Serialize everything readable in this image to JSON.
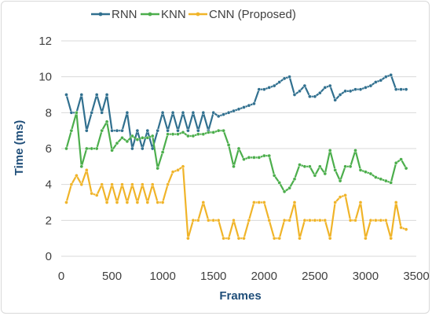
{
  "chart_data": {
    "type": "line",
    "title": "",
    "xlabel": "Frames",
    "ylabel": "Time (ms)",
    "xlim": [
      0,
      3500
    ],
    "ylim": [
      0,
      12
    ],
    "xticks": [
      "0",
      "500",
      "1000",
      "1500",
      "2000",
      "2500",
      "3000",
      "3500"
    ],
    "yticks": [
      "0",
      "2",
      "4",
      "6",
      "8",
      "10",
      "12"
    ],
    "grid": "horizontal",
    "legend_position": "top",
    "series": [
      {
        "name": "RNN",
        "color": "#31708f",
        "points": [
          [
            50,
            9
          ],
          [
            100,
            8
          ],
          [
            150,
            8
          ],
          [
            200,
            9
          ],
          [
            250,
            7
          ],
          [
            300,
            8
          ],
          [
            350,
            9
          ],
          [
            400,
            8
          ],
          [
            450,
            9
          ],
          [
            500,
            7
          ],
          [
            550,
            7
          ],
          [
            600,
            7
          ],
          [
            650,
            8
          ],
          [
            700,
            6
          ],
          [
            750,
            7
          ],
          [
            800,
            6
          ],
          [
            850,
            7
          ],
          [
            900,
            6
          ],
          [
            950,
            7
          ],
          [
            1000,
            8
          ],
          [
            1050,
            7
          ],
          [
            1100,
            8
          ],
          [
            1150,
            7
          ],
          [
            1200,
            8
          ],
          [
            1250,
            7
          ],
          [
            1300,
            8
          ],
          [
            1350,
            7
          ],
          [
            1400,
            8
          ],
          [
            1450,
            7
          ],
          [
            1500,
            8
          ],
          [
            1550,
            7.8
          ],
          [
            1600,
            7.9
          ],
          [
            1650,
            8
          ],
          [
            1700,
            8.1
          ],
          [
            1750,
            8.2
          ],
          [
            1800,
            8.3
          ],
          [
            1850,
            8.4
          ],
          [
            1900,
            8.5
          ],
          [
            1950,
            9.3
          ],
          [
            2000,
            9.3
          ],
          [
            2050,
            9.4
          ],
          [
            2100,
            9.5
          ],
          [
            2150,
            9.7
          ],
          [
            2200,
            9.9
          ],
          [
            2250,
            10
          ],
          [
            2300,
            9
          ],
          [
            2350,
            9.2
          ],
          [
            2400,
            9.5
          ],
          [
            2450,
            8.9
          ],
          [
            2500,
            8.9
          ],
          [
            2550,
            9.1
          ],
          [
            2600,
            9.4
          ],
          [
            2650,
            9.5
          ],
          [
            2700,
            8.7
          ],
          [
            2750,
            9
          ],
          [
            2800,
            9.2
          ],
          [
            2850,
            9.2
          ],
          [
            2900,
            9.3
          ],
          [
            2950,
            9.3
          ],
          [
            3000,
            9.4
          ],
          [
            3050,
            9.5
          ],
          [
            3100,
            9.7
          ],
          [
            3150,
            9.8
          ],
          [
            3200,
            10
          ],
          [
            3250,
            10.1
          ],
          [
            3300,
            9.3
          ],
          [
            3350,
            9.3
          ],
          [
            3400,
            9.3
          ]
        ]
      },
      {
        "name": "KNN",
        "color": "#4cae4c",
        "points": [
          [
            50,
            6
          ],
          [
            100,
            7
          ],
          [
            150,
            8
          ],
          [
            200,
            5
          ],
          [
            250,
            6
          ],
          [
            300,
            6
          ],
          [
            350,
            6
          ],
          [
            400,
            7
          ],
          [
            450,
            7.5
          ],
          [
            500,
            5.9
          ],
          [
            550,
            6.3
          ],
          [
            600,
            6.6
          ],
          [
            650,
            6.4
          ],
          [
            700,
            6.7
          ],
          [
            750,
            6.5
          ],
          [
            800,
            6.6
          ],
          [
            850,
            6.6
          ],
          [
            900,
            6.7
          ],
          [
            950,
            4.9
          ],
          [
            1000,
            5.8
          ],
          [
            1050,
            6.8
          ],
          [
            1100,
            6.8
          ],
          [
            1150,
            6.8
          ],
          [
            1200,
            6.9
          ],
          [
            1250,
            6.7
          ],
          [
            1300,
            6.7
          ],
          [
            1350,
            6.8
          ],
          [
            1400,
            6.8
          ],
          [
            1450,
            6.9
          ],
          [
            1500,
            6.9
          ],
          [
            1550,
            7
          ],
          [
            1600,
            7
          ],
          [
            1650,
            6.2
          ],
          [
            1700,
            5
          ],
          [
            1750,
            6
          ],
          [
            1800,
            5.4
          ],
          [
            1850,
            5.5
          ],
          [
            1900,
            5.5
          ],
          [
            1950,
            5.5
          ],
          [
            2000,
            5.6
          ],
          [
            2050,
            5.6
          ],
          [
            2100,
            4.5
          ],
          [
            2150,
            4.1
          ],
          [
            2200,
            3.6
          ],
          [
            2250,
            3.8
          ],
          [
            2300,
            4.3
          ],
          [
            2350,
            5.1
          ],
          [
            2400,
            5
          ],
          [
            2450,
            5
          ],
          [
            2500,
            4.5
          ],
          [
            2550,
            5
          ],
          [
            2600,
            4.6
          ],
          [
            2650,
            5.9
          ],
          [
            2700,
            4.8
          ],
          [
            2750,
            4.2
          ],
          [
            2800,
            5
          ],
          [
            2850,
            5
          ],
          [
            2900,
            5.9
          ],
          [
            2950,
            4.8
          ],
          [
            3000,
            4.7
          ],
          [
            3050,
            4.6
          ],
          [
            3100,
            4.4
          ],
          [
            3150,
            4.3
          ],
          [
            3200,
            4.2
          ],
          [
            3250,
            4.1
          ],
          [
            3300,
            5.2
          ],
          [
            3350,
            5.4
          ],
          [
            3400,
            4.9
          ]
        ]
      },
      {
        "name": "CNN (Proposed)",
        "color": "#f0b429",
        "points": [
          [
            50,
            3
          ],
          [
            100,
            4
          ],
          [
            150,
            4.5
          ],
          [
            200,
            4
          ],
          [
            250,
            4.8
          ],
          [
            300,
            3.5
          ],
          [
            350,
            3.4
          ],
          [
            400,
            4
          ],
          [
            450,
            3
          ],
          [
            500,
            4
          ],
          [
            550,
            3
          ],
          [
            600,
            4
          ],
          [
            650,
            3
          ],
          [
            700,
            4
          ],
          [
            750,
            3
          ],
          [
            800,
            4
          ],
          [
            850,
            3
          ],
          [
            900,
            4
          ],
          [
            950,
            3
          ],
          [
            1000,
            3
          ],
          [
            1050,
            4
          ],
          [
            1100,
            4.7
          ],
          [
            1150,
            4.8
          ],
          [
            1200,
            5
          ],
          [
            1250,
            1
          ],
          [
            1300,
            2
          ],
          [
            1350,
            2
          ],
          [
            1400,
            3
          ],
          [
            1450,
            2
          ],
          [
            1500,
            2
          ],
          [
            1550,
            2
          ],
          [
            1600,
            1
          ],
          [
            1650,
            1
          ],
          [
            1700,
            2
          ],
          [
            1750,
            1
          ],
          [
            1800,
            1
          ],
          [
            1850,
            2
          ],
          [
            1900,
            3
          ],
          [
            1950,
            3
          ],
          [
            2000,
            3
          ],
          [
            2050,
            2
          ],
          [
            2100,
            1
          ],
          [
            2150,
            1
          ],
          [
            2200,
            2
          ],
          [
            2250,
            2
          ],
          [
            2300,
            3
          ],
          [
            2350,
            1
          ],
          [
            2400,
            2
          ],
          [
            2450,
            2
          ],
          [
            2500,
            2
          ],
          [
            2550,
            2
          ],
          [
            2600,
            2
          ],
          [
            2650,
            1
          ],
          [
            2700,
            3
          ],
          [
            2750,
            3.3
          ],
          [
            2800,
            3.4
          ],
          [
            2850,
            2
          ],
          [
            2900,
            2
          ],
          [
            2950,
            3
          ],
          [
            3000,
            1
          ],
          [
            3050,
            2
          ],
          [
            3100,
            2
          ],
          [
            3150,
            2
          ],
          [
            3200,
            2
          ],
          [
            3250,
            1
          ],
          [
            3300,
            3
          ],
          [
            3350,
            1.6
          ],
          [
            3400,
            1.5
          ]
        ]
      }
    ]
  }
}
